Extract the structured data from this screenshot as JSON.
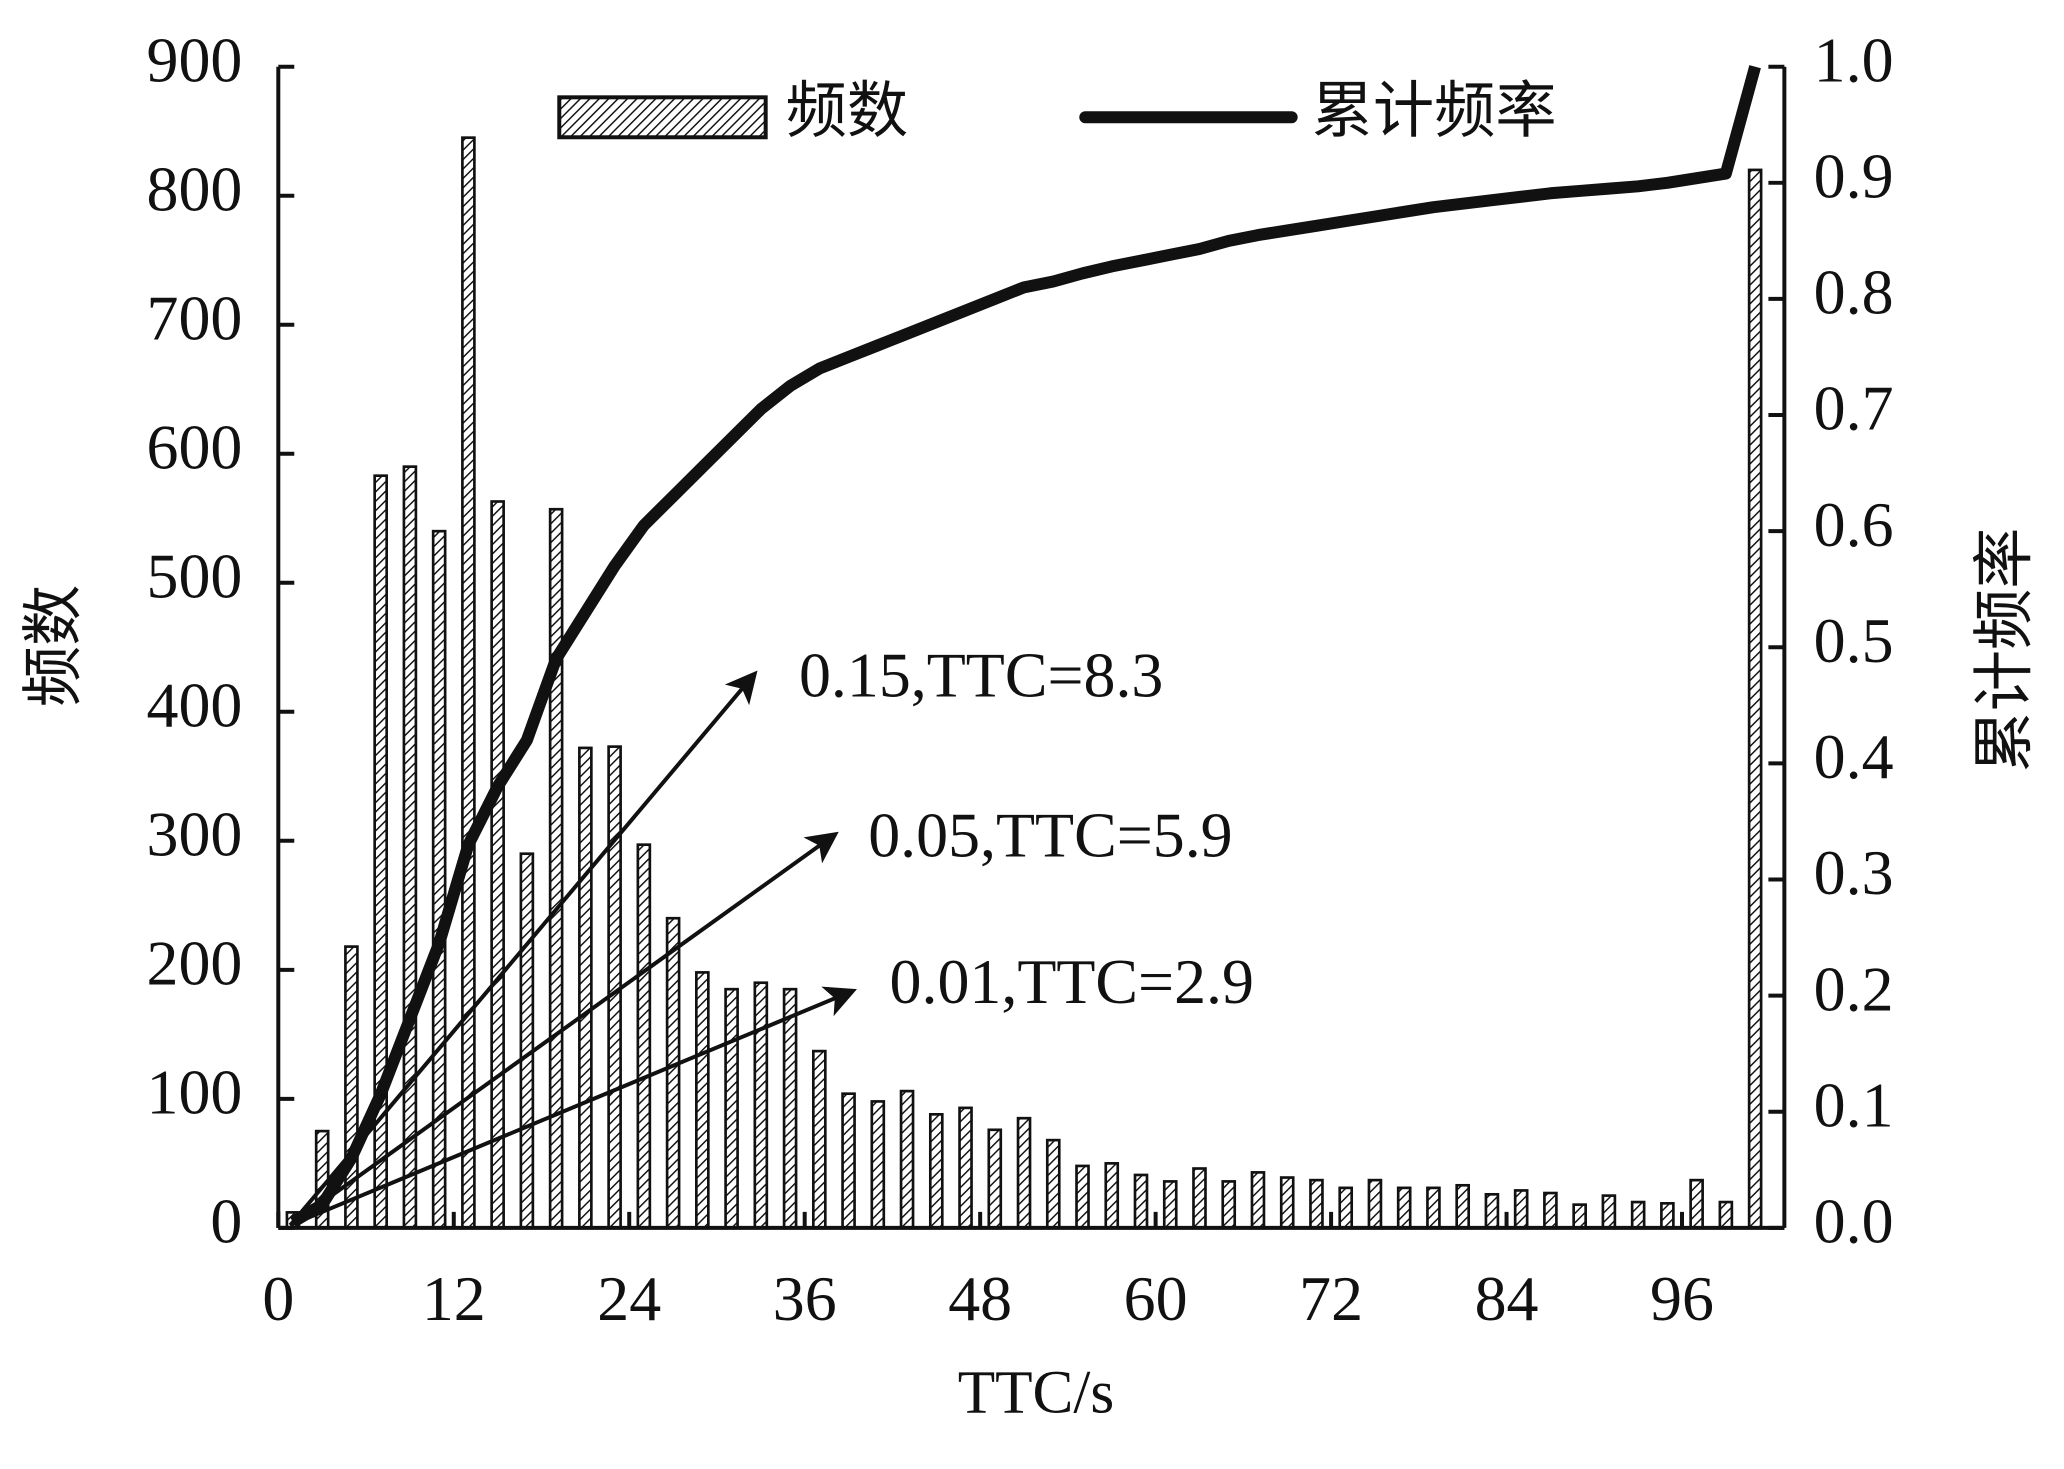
{
  "chart_data": {
    "type": "bar-line",
    "x_label": "TTC/s",
    "y_label": "频数",
    "y2_label": "累计频率",
    "x": [
      1,
      3,
      5,
      7,
      9,
      11,
      13,
      15,
      17,
      19,
      21,
      23,
      25,
      27,
      29,
      31,
      33,
      35,
      37,
      39,
      41,
      43,
      45,
      47,
      49,
      51,
      53,
      55,
      57,
      59,
      61,
      63,
      65,
      67,
      69,
      71,
      73,
      75,
      77,
      79,
      81,
      83,
      85,
      87,
      89,
      91,
      93,
      95,
      97,
      99,
      101
    ],
    "series": [
      {
        "name": "频数",
        "type": "bar",
        "color": "#111111",
        "values": [
          12,
          75,
          218,
          583,
          590,
          540,
          845,
          563,
          290,
          557,
          372,
          373,
          297,
          240,
          198,
          185,
          190,
          185,
          137,
          104,
          98,
          106,
          88,
          93,
          76,
          85,
          68,
          48,
          50,
          41,
          36,
          46,
          36,
          43,
          39,
          37,
          31,
          37,
          31,
          31,
          33,
          26,
          29,
          27,
          18,
          25,
          20,
          19,
          37,
          20,
          820
        ]
      },
      {
        "name": "累计频率",
        "type": "line",
        "axis": "y2",
        "color": "#111111",
        "values": [
          0.005,
          0.02,
          0.06,
          0.115,
          0.18,
          0.245,
          0.33,
          0.38,
          0.42,
          0.49,
          0.53,
          0.57,
          0.605,
          0.63,
          0.655,
          0.68,
          0.705,
          0.725,
          0.74,
          0.75,
          0.76,
          0.77,
          0.78,
          0.79,
          0.8,
          0.81,
          0.815,
          0.822,
          0.828,
          0.833,
          0.838,
          0.843,
          0.85,
          0.855,
          0.859,
          0.863,
          0.867,
          0.871,
          0.875,
          0.879,
          0.882,
          0.885,
          0.888,
          0.891,
          0.893,
          0.895,
          0.897,
          0.9,
          0.904,
          0.908,
          1.0
        ]
      }
    ],
    "xlim": [
      0,
      103
    ],
    "xticks": [
      0,
      12,
      24,
      36,
      48,
      60,
      72,
      84,
      96
    ],
    "ylim": [
      0,
      900
    ],
    "yticks": [
      0,
      100,
      200,
      300,
      400,
      500,
      600,
      700,
      800,
      900
    ],
    "y2lim": [
      0,
      1
    ],
    "y2ticks": [
      {
        "value": 0,
        "label": "0.0"
      },
      0.1,
      0.2,
      0.3,
      0.4,
      0.5,
      0.6,
      0.7,
      0.8,
      0.9,
      {
        "value": 1,
        "label": "1.0"
      }
    ],
    "annotations": [
      "0.15,TTC=8.3",
      "0.05,TTC=5.9",
      "0.01,TTC=2.9"
    ]
  }
}
